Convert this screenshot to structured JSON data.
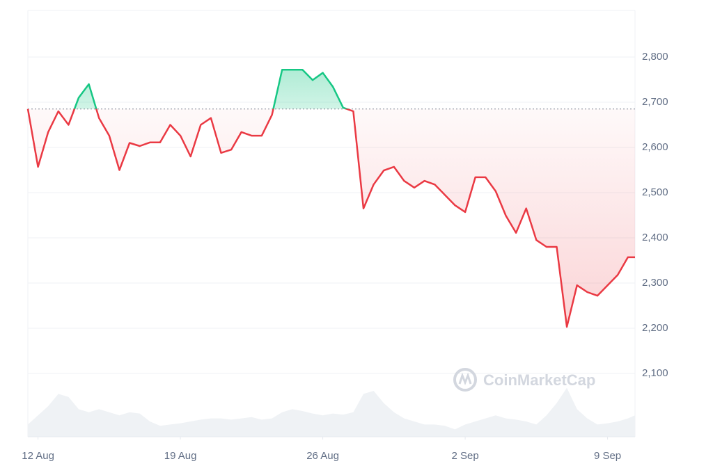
{
  "chart_data": {
    "type": "line",
    "x": [
      -0.5,
      0,
      0.5,
      1,
      1.5,
      2,
      2.5,
      3,
      3.5,
      4,
      4.5,
      5,
      5.5,
      6,
      6.5,
      7,
      7.5,
      8,
      8.5,
      9,
      9.5,
      10,
      10.5,
      11,
      11.5,
      12,
      12.5,
      13,
      13.5,
      14,
      14.5,
      15,
      15.5,
      16,
      16.5,
      17,
      17.5,
      18,
      18.5,
      19,
      19.5,
      20,
      20.5,
      21,
      21.5,
      22,
      22.5,
      23,
      23.5,
      24,
      24.5,
      25,
      25.5,
      26,
      26.5,
      27,
      27.5,
      28,
      28.5,
      29,
      29.35
    ],
    "series": [
      {
        "name": "Price",
        "color": "#ea3943",
        "up_color": "#16c784",
        "values": [
          2685,
          2557,
          2634,
          2680,
          2650,
          2710,
          2740,
          2665,
          2626,
          2550,
          2610,
          2603,
          2611,
          2611,
          2650,
          2626,
          2580,
          2650,
          2665,
          2588,
          2595,
          2634,
          2626,
          2626,
          2672,
          2772,
          2772,
          2772,
          2749,
          2765,
          2734,
          2688,
          2680,
          2465,
          2518,
          2549,
          2557,
          2526,
          2511,
          2526,
          2518,
          2495,
          2472,
          2457,
          2534,
          2534,
          2503,
          2449,
          2411,
          2465,
          2395,
          2380,
          2380,
          2203,
          2295,
          2280,
          2272,
          2295,
          2318,
          2357,
          2357
        ]
      },
      {
        "name": "Volume",
        "color": "#eff2f5",
        "axis": "y2",
        "values": [
          20,
          35,
          50,
          70,
          65,
          45,
          40,
          45,
          40,
          35,
          40,
          38,
          25,
          18,
          20,
          22,
          25,
          28,
          30,
          30,
          28,
          30,
          32,
          28,
          30,
          40,
          45,
          42,
          38,
          35,
          38,
          36,
          40,
          70,
          75,
          55,
          40,
          30,
          25,
          20,
          20,
          18,
          12,
          20,
          25,
          30,
          35,
          30,
          28,
          25,
          20,
          35,
          55,
          80,
          45,
          30,
          20,
          22,
          25,
          30,
          35
        ]
      }
    ],
    "baseline": 2685,
    "xlim": [
      -0.5,
      29.35
    ],
    "xticks": [
      {
        "value": 0,
        "label": "12 Aug"
      },
      {
        "value": 7,
        "label": "19 Aug"
      },
      {
        "value": 14,
        "label": "26 Aug"
      },
      {
        "value": 21,
        "label": "2 Sep"
      },
      {
        "value": 28,
        "label": "9 Sep"
      }
    ],
    "ylim": [
      1960,
      2903
    ],
    "yticks": [
      {
        "value": 2100,
        "label": "2,100"
      },
      {
        "value": 2200,
        "label": "2,200"
      },
      {
        "value": 2300,
        "label": "2,300"
      },
      {
        "value": 2400,
        "label": "2,400"
      },
      {
        "value": 2500,
        "label": "2,500"
      },
      {
        "value": 2600,
        "label": "2,600"
      },
      {
        "value": 2700,
        "label": "2,700"
      },
      {
        "value": 2800,
        "label": "2,800"
      }
    ],
    "y2lim": [
      0,
      100
    ],
    "grid": true,
    "watermark": "CoinMarketCap"
  }
}
